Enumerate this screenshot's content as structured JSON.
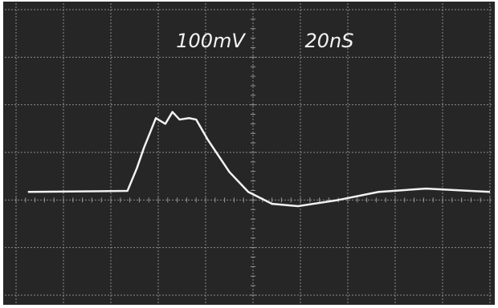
{
  "chart_data": {
    "type": "line",
    "annotations": [
      "100mV",
      "20nS"
    ],
    "x": [
      5,
      47,
      51,
      54,
      59,
      63,
      66,
      69,
      73,
      76,
      81,
      90,
      98,
      108,
      119,
      136,
      153,
      173,
      200
    ],
    "series": [
      {
        "color": "#f2f2f2",
        "values": [
          17,
          19,
          67,
          110,
          172,
          160,
          185,
          169,
          172,
          169,
          126,
          59,
          17,
          -8,
          -13,
          0,
          17,
          24,
          17
        ]
      }
    ],
    "xlim": [
      0,
      200
    ],
    "ylim": [
      -200,
      400
    ],
    "grid": true
  }
}
